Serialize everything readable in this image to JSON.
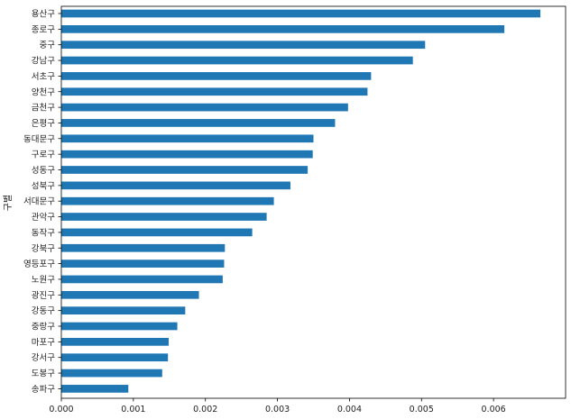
{
  "chart_data": {
    "type": "bar",
    "orientation": "horizontal",
    "ylabel": "구별",
    "xlabel": "",
    "xlim": [
      0,
      0.007
    ],
    "xticks": [
      "0.000",
      "0.001",
      "0.002",
      "0.003",
      "0.004",
      "0.005",
      "0.006"
    ],
    "xtick_values": [
      0,
      0.001,
      0.002,
      0.003,
      0.004,
      0.005,
      0.006
    ],
    "grid": false,
    "legend": "none",
    "bar_color": "#1f77b4",
    "categories": [
      "용산구",
      "종로구",
      "중구",
      "강남구",
      "서초구",
      "양천구",
      "금천구",
      "은평구",
      "동대문구",
      "구로구",
      "성동구",
      "성북구",
      "서대문구",
      "관악구",
      "동작구",
      "강북구",
      "영등포구",
      "노원구",
      "광진구",
      "강동구",
      "중랑구",
      "마포구",
      "강서구",
      "도봉구",
      "송파구"
    ],
    "values": [
      0.00665,
      0.00615,
      0.00505,
      0.00488,
      0.0043,
      0.00425,
      0.00398,
      0.0038,
      0.0035,
      0.00349,
      0.00342,
      0.00318,
      0.00295,
      0.00285,
      0.00265,
      0.00227,
      0.00226,
      0.00224,
      0.00191,
      0.00172,
      0.00161,
      0.00149,
      0.00148,
      0.0014,
      0.00093
    ]
  }
}
